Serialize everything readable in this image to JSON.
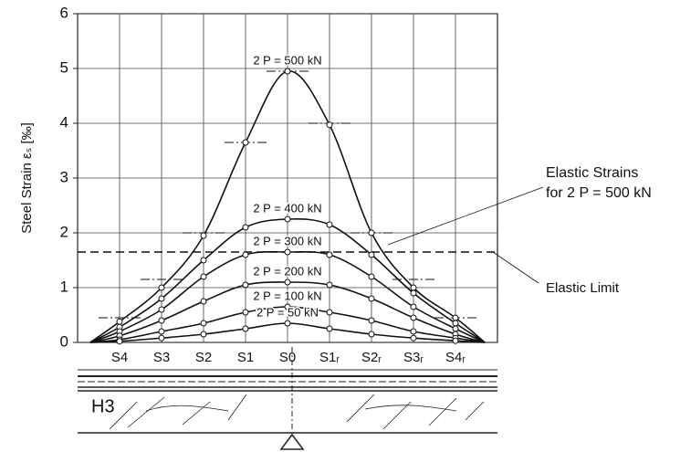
{
  "chart_data": {
    "type": "line",
    "ylabel": "Steel Strain εₛ [‰]",
    "x": [
      -4.7,
      -4,
      -3,
      -2,
      -1,
      0,
      1,
      2,
      3,
      4,
      4.7
    ],
    "series": [
      {
        "name": "2 P = 500 kN",
        "color": "#111111",
        "values": [
          0,
          0.38,
          1.0,
          1.95,
          3.65,
          4.95,
          3.97,
          2.0,
          1.0,
          0.45,
          0
        ]
      },
      {
        "name": "2 P = 400 kN",
        "color": "#111111",
        "values": [
          0,
          0.28,
          0.8,
          1.5,
          2.1,
          2.25,
          2.15,
          1.6,
          0.9,
          0.35,
          0
        ]
      },
      {
        "name": "2 P = 300 kN",
        "color": "#111111",
        "values": [
          0,
          0.2,
          0.6,
          1.2,
          1.6,
          1.65,
          1.6,
          1.2,
          0.65,
          0.25,
          0
        ]
      },
      {
        "name": "2 P = 200 kN",
        "color": "#111111",
        "values": [
          0,
          0.12,
          0.4,
          0.75,
          1.05,
          1.1,
          1.05,
          0.8,
          0.45,
          0.15,
          0
        ]
      },
      {
        "name": "2 P = 100 kN",
        "color": "#111111",
        "values": [
          0,
          0.05,
          0.2,
          0.35,
          0.55,
          0.65,
          0.55,
          0.4,
          0.2,
          0.08,
          0
        ]
      },
      {
        "name": "2 P = 50 kN",
        "color": "#111111",
        "values": [
          0,
          0.02,
          0.08,
          0.15,
          0.25,
          0.35,
          0.25,
          0.15,
          0.08,
          0.03,
          0
        ]
      }
    ],
    "elastic_strains": {
      "label": [
        "Elastic Strains",
        "for 2 P = 500 kN"
      ],
      "x": [
        -4,
        -3,
        -2,
        -1,
        0,
        1,
        2,
        3,
        4
      ],
      "values": [
        0.45,
        1.15,
        2.0,
        3.65,
        4.95,
        4.0,
        2.0,
        1.15,
        0.45
      ]
    },
    "elastic_limit": {
      "label": "Elastic Limit",
      "value": 1.65
    },
    "xlim": [
      -5,
      5
    ],
    "xticks": [
      {
        "value": -4,
        "label": "S4"
      },
      {
        "value": -3,
        "label": "S3"
      },
      {
        "value": -2,
        "label": "S2"
      },
      {
        "value": -1,
        "label": "S1"
      },
      {
        "value": 0,
        "label": "S0"
      },
      {
        "value": 1,
        "label": "S1ᵣ"
      },
      {
        "value": 2,
        "label": "S2ᵣ"
      },
      {
        "value": 3,
        "label": "S3ᵣ"
      },
      {
        "value": 4,
        "label": "S4ᵣ"
      }
    ],
    "ylim": [
      0,
      6
    ],
    "yticks": [
      0,
      1,
      2,
      3,
      4,
      5,
      6
    ],
    "grid": true,
    "specimen": "H3"
  }
}
